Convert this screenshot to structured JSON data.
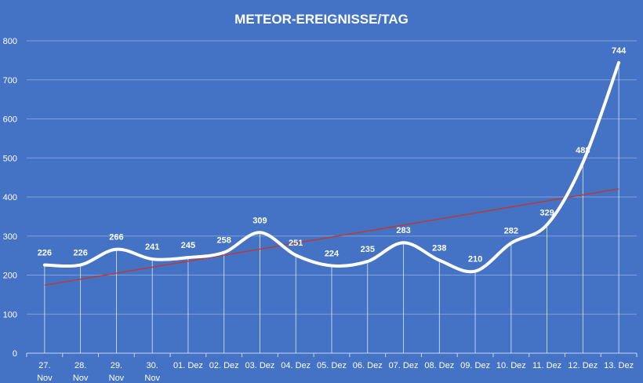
{
  "chart_data": {
    "type": "line",
    "title": "METEOR-EREIGNISSE/TAG",
    "xlabel": "",
    "ylabel": "",
    "categories": [
      [
        "27.",
        "Nov"
      ],
      [
        "28.",
        "Nov"
      ],
      [
        "29.",
        "Nov"
      ],
      [
        "30.",
        "Nov"
      ],
      [
        "01. Dez"
      ],
      [
        "02. Dez"
      ],
      [
        "03. Dez"
      ],
      [
        "04. Dez"
      ],
      [
        "05. Dez"
      ],
      [
        "06. Dez"
      ],
      [
        "07. Dez"
      ],
      [
        "08. Dez"
      ],
      [
        "09. Dez"
      ],
      [
        "10. Dez"
      ],
      [
        "11. Dez"
      ],
      [
        "12. Dez"
      ],
      [
        "13. Dez"
      ]
    ],
    "values": [
      226,
      226,
      266,
      241,
      245,
      258,
      309,
      251,
      224,
      235,
      283,
      238,
      210,
      282,
      329,
      488,
      744
    ],
    "ylim": [
      0,
      800
    ],
    "yticks": [
      0,
      100,
      200,
      300,
      400,
      500,
      600,
      700,
      800
    ],
    "trendline": true,
    "grid": true,
    "data_labels": true,
    "colors": {
      "background": "#4472c4",
      "line": "#ffffff",
      "trend": "#c0392b",
      "grid": "#7f9fd8"
    }
  }
}
